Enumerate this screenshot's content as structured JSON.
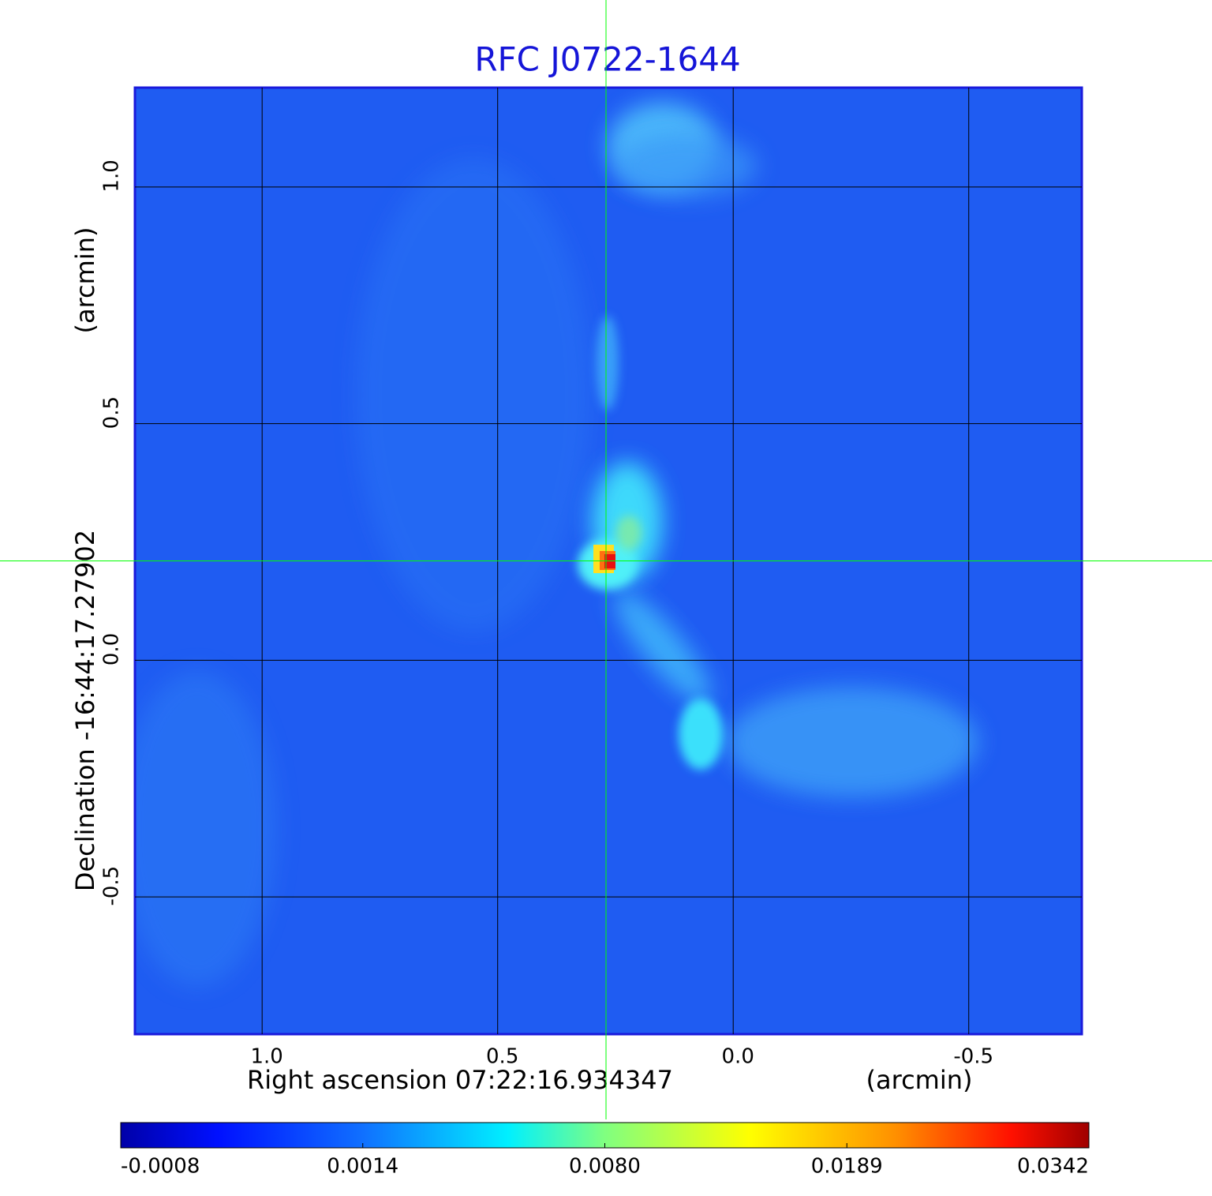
{
  "chart_data": {
    "type": "image",
    "title": "RFC J0722-1644",
    "xlabel": "Right ascension  07:22:16.934347",
    "xunit": "(arcmin)",
    "ylabel": "Declination  -16:44:17.27902",
    "yunit": "(arcmin)",
    "xlim": [
      1.27,
      -0.74
    ],
    "ylim": [
      -0.79,
      1.21
    ],
    "xticks": [
      {
        "value": 1,
        "label": "1.0"
      },
      {
        "value": 0.5,
        "label": "0.5"
      },
      {
        "value": 0,
        "label": "0.0"
      },
      {
        "value": -0.5,
        "label": "-0.5"
      }
    ],
    "yticks": [
      {
        "value": 1,
        "label": "1.0"
      },
      {
        "value": 0.5,
        "label": "0.5"
      },
      {
        "value": 0,
        "label": "0.0"
      },
      {
        "value": -0.5,
        "label": "-0.5"
      }
    ],
    "grid": true,
    "crosshair": {
      "x": 0.27,
      "y": 0.21,
      "color": "#00ff00"
    },
    "colormap": "jet",
    "colorbar_ticks": [
      -0.0008,
      0.0014,
      {
        "value": 0.008,
        "label": "0.0080"
      },
      0.0189,
      0.0342
    ],
    "colorbar_scale": "piecewise"
  }
}
